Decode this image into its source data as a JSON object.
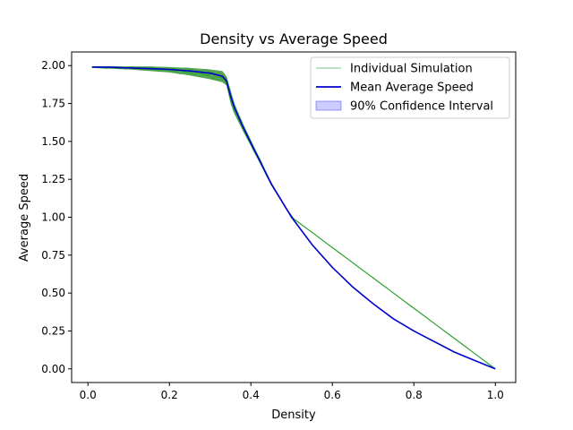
{
  "chart_data": {
    "type": "line",
    "title": "Density vs Average Speed",
    "xlabel": "Density",
    "ylabel": "Average Speed",
    "xlim": [
      -0.04,
      1.05
    ],
    "ylim": [
      -0.09,
      2.09
    ],
    "xticks": [
      {
        "value": 0.0,
        "label": "0.0"
      },
      {
        "value": 0.2,
        "label": "0.2"
      },
      {
        "value": 0.4,
        "label": "0.4"
      },
      {
        "value": 0.6,
        "label": "0.6"
      },
      {
        "value": 0.8,
        "label": "0.8"
      },
      {
        "value": 1.0,
        "label": "1.0"
      }
    ],
    "yticks": [
      {
        "value": 0.0,
        "label": "0.00"
      },
      {
        "value": 0.25,
        "label": "0.25"
      },
      {
        "value": 0.5,
        "label": "0.50"
      },
      {
        "value": 0.75,
        "label": "0.75"
      },
      {
        "value": 1.0,
        "label": "1.00"
      },
      {
        "value": 1.25,
        "label": "1.25"
      },
      {
        "value": 1.5,
        "label": "1.50"
      },
      {
        "value": 1.75,
        "label": "1.75"
      },
      {
        "value": 2.0,
        "label": "2.00"
      }
    ],
    "grid": false,
    "legend_position": "top-right",
    "legend": [
      {
        "label": "Individual Simulation",
        "kind": "line",
        "color": "#2ca02c",
        "alpha": 0.35
      },
      {
        "label": "Mean Average Speed",
        "kind": "line",
        "color": "#0000cd",
        "alpha": 1
      },
      {
        "label": "90% Confidence Interval",
        "kind": "patch",
        "color": "#0000ff",
        "alpha": 0.2
      }
    ],
    "series": [
      {
        "name": "Mean Average Speed",
        "color": "#0000cd",
        "x": [
          0.01,
          0.05,
          0.1,
          0.15,
          0.2,
          0.25,
          0.3,
          0.33,
          0.34,
          0.35,
          0.36,
          0.38,
          0.4,
          0.45,
          0.5,
          0.55,
          0.6,
          0.65,
          0.7,
          0.75,
          0.8,
          0.85,
          0.9,
          0.95,
          1.0
        ],
        "y": [
          1.99,
          1.99,
          1.985,
          1.98,
          1.975,
          1.965,
          1.95,
          1.93,
          1.9,
          1.8,
          1.72,
          1.6,
          1.49,
          1.22,
          1.0,
          0.82,
          0.67,
          0.54,
          0.43,
          0.33,
          0.25,
          0.18,
          0.11,
          0.055,
          0.0
        ]
      },
      {
        "name": "Individual Simulation",
        "color": "#2ca02c",
        "band": true,
        "x": [
          0.01,
          0.05,
          0.1,
          0.15,
          0.2,
          0.25,
          0.3,
          0.33,
          0.34,
          0.35,
          0.36,
          0.38,
          0.4,
          0.45,
          0.5,
          1.0
        ],
        "y_low": [
          1.985,
          1.98,
          1.975,
          1.965,
          1.955,
          1.935,
          1.91,
          1.89,
          1.87,
          1.75,
          1.68,
          1.57,
          1.47,
          1.21,
          1.0,
          0.0
        ],
        "y_high": [
          1.995,
          1.995,
          1.995,
          1.995,
          1.99,
          1.985,
          1.975,
          1.965,
          1.93,
          1.84,
          1.75,
          1.62,
          1.51,
          1.23,
          1.0,
          0.0
        ]
      }
    ]
  }
}
